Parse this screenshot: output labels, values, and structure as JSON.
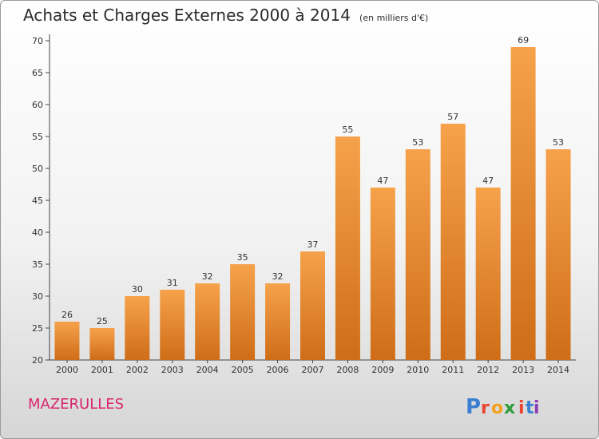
{
  "header": {
    "title": "Achats et Charges Externes 2000 à 2014",
    "unit": "(en milliers d'€)"
  },
  "commune": "MAZERULLES",
  "brand": {
    "letters": [
      "P",
      "r",
      "o",
      "x",
      "i",
      "t",
      "i"
    ],
    "colors": [
      "#3a7fd0",
      "#e8442e",
      "#f2a11a",
      "#2e9c3c",
      "#e8442e",
      "#3a7fd0",
      "#8a3fb5"
    ]
  },
  "colors": {
    "bar_light": "#f6a24b",
    "bar_dark": "#cf6d18",
    "axis": "#444444",
    "grid": "#dddddd"
  },
  "chart_data": {
    "type": "bar",
    "title": "Achats et Charges Externes 2000 à 2014",
    "subtitle": "(en milliers d'€)",
    "categories": [
      "2000",
      "2001",
      "2002",
      "2003",
      "2004",
      "2005",
      "2006",
      "2007",
      "2008",
      "2009",
      "2010",
      "2011",
      "2012",
      "2013",
      "2014"
    ],
    "values": [
      26,
      25,
      30,
      31,
      32,
      35,
      32,
      37,
      55,
      47,
      53,
      57,
      47,
      69,
      53
    ],
    "ylim": [
      20,
      70
    ],
    "yticks": [
      20,
      25,
      30,
      35,
      40,
      45,
      50,
      55,
      60,
      65,
      70
    ],
    "grid": false,
    "data_labels": true
  }
}
